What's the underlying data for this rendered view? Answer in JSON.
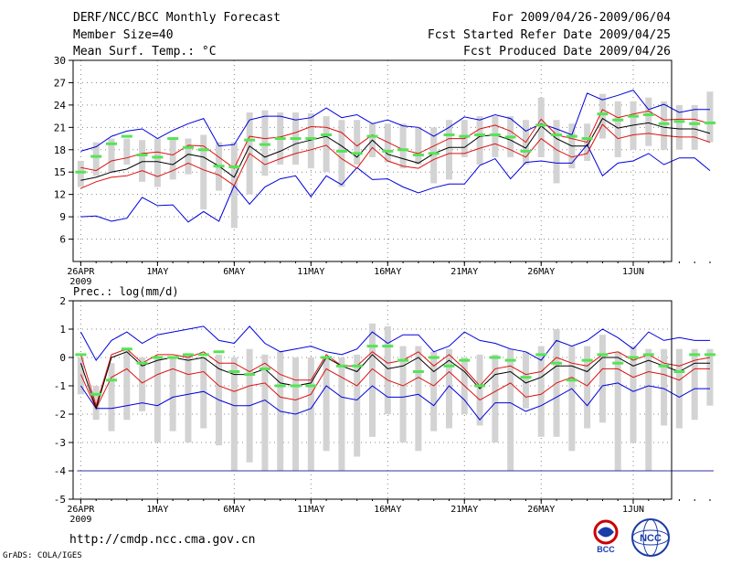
{
  "header": {
    "title_line1": "DERF/NCC/BCC Monthly Forecast",
    "title_line2": "Member Size=40",
    "title_line3": "Mean Surf. Temp.: °C",
    "right_line1": "For 2009/04/26-2009/06/04",
    "right_line2": "Fcst Started Refer Date 2009/04/25",
    "right_line3": "Fcst Produced Date 2009/04/26"
  },
  "footer": {
    "url": "http://cmdp.ncc.cma.gov.cn",
    "credit": "GrADS: COLA/IGES",
    "logo_left_text": "BCC",
    "logo_right_text": "NCC"
  },
  "colors": {
    "box": "#d3d3d3",
    "median": "#55e455",
    "mean": "#000000",
    "inner": "#dd1111",
    "outer": "#0000dd",
    "grid": "#888888"
  },
  "chart_data": [
    {
      "type": "line",
      "title": "Mean Surf. Temp.: °C",
      "ylim": [
        3,
        30
      ],
      "yticks": [
        6,
        9,
        12,
        15,
        18,
        21,
        24,
        27,
        30
      ],
      "xlim": [
        -0.5,
        38.5
      ],
      "xticks": [
        0,
        5,
        10,
        15,
        20,
        25,
        30,
        36
      ],
      "xtick_labels": [
        "26APR",
        "1MAY",
        "6MAY",
        "11MAY",
        "16MAY",
        "21MAY",
        "26MAY",
        "1JUN"
      ],
      "xtick_sublabel": "2009",
      "series": [
        {
          "name": "max",
          "values": [
            17.8,
            18.4,
            19.8,
            20.5,
            20.8,
            19.5,
            20.6,
            21.5,
            22.2,
            18.5,
            18.7,
            22.0,
            22.5,
            22.5,
            22.0,
            22.3,
            23.6,
            22.3,
            22.7,
            21.5,
            22.0,
            21.2,
            21.0,
            19.8,
            21.0,
            22.4,
            22.0,
            22.7,
            22.2,
            20.5,
            21.5,
            20.8,
            20.0,
            25.6,
            24.7,
            25.3,
            26.0,
            23.4,
            24.1,
            23.0,
            23.4,
            23.4
          ]
        },
        {
          "name": "upper",
          "values": [
            15.6,
            15.2,
            16.5,
            16.9,
            17.5,
            17.7,
            17.3,
            18.6,
            18.5,
            17.0,
            15.5,
            19.8,
            19.5,
            19.7,
            20.3,
            21.1,
            21.0,
            20.3,
            18.5,
            20.0,
            19.0,
            18.0,
            17.5,
            18.5,
            19.5,
            19.5,
            20.8,
            21.3,
            20.5,
            19.0,
            22.1,
            20.0,
            19.5,
            19.0,
            23.4,
            22.3,
            22.8,
            23.2,
            22.0,
            22.1,
            22.1,
            21.5
          ]
        },
        {
          "name": "mean",
          "values": [
            13.9,
            14.3,
            15.0,
            15.4,
            16.4,
            16.4,
            16.0,
            17.4,
            17.0,
            15.8,
            14.3,
            18.5,
            17.0,
            17.8,
            18.8,
            19.3,
            19.8,
            18.5,
            17.0,
            19.3,
            17.4,
            16.8,
            16.2,
            17.5,
            18.3,
            18.3,
            19.8,
            20.0,
            19.3,
            18.2,
            21.2,
            19.5,
            18.5,
            18.5,
            22.2,
            20.9,
            21.3,
            21.6,
            21.0,
            20.8,
            20.8,
            20.2
          ]
        },
        {
          "name": "lower",
          "values": [
            12.8,
            13.7,
            14.3,
            14.5,
            15.2,
            14.4,
            15.2,
            16.2,
            15.3,
            14.6,
            13.2,
            17.5,
            16.0,
            16.8,
            17.5,
            18.0,
            18.6,
            16.8,
            15.5,
            18.3,
            16.5,
            15.8,
            15.5,
            16.7,
            17.5,
            17.5,
            18.2,
            18.8,
            18.0,
            17.0,
            19.5,
            18.0,
            17.0,
            17.5,
            21.4,
            19.5,
            20.0,
            20.2,
            19.9,
            19.7,
            19.7,
            19.0
          ]
        },
        {
          "name": "min",
          "values": [
            9.0,
            9.1,
            8.4,
            8.8,
            11.6,
            10.5,
            10.6,
            8.3,
            9.7,
            8.4,
            13.2,
            10.7,
            13.0,
            14.1,
            14.5,
            11.7,
            14.5,
            13.3,
            15.6,
            14.0,
            14.1,
            13.0,
            12.2,
            12.9,
            13.4,
            13.4,
            15.9,
            16.8,
            14.1,
            16.3,
            16.5,
            16.2,
            16.2,
            18.7,
            14.5,
            16.2,
            16.5,
            17.5,
            16.0,
            16.9,
            16.9,
            15.2
          ]
        },
        {
          "name": "median",
          "values": [
            15.0,
            17.1,
            18.8,
            19.8,
            17.3,
            17.0,
            19.5,
            18.3,
            18.0,
            15.8,
            15.7,
            19.3,
            18.7,
            19.5,
            19.5,
            19.5,
            20.0,
            17.8,
            17.5,
            19.8,
            17.8,
            18.0,
            17.3,
            17.5,
            20.0,
            19.8,
            20.0,
            20.0,
            19.7,
            17.8,
            21.3,
            20.0,
            19.8,
            19.5,
            22.8,
            22.0,
            22.5,
            22.7,
            21.5,
            21.8,
            21.5,
            21.6
          ]
        },
        {
          "name": "box_top",
          "values": [
            16.5,
            19.0,
            19.5,
            19.5,
            19.3,
            19.5,
            19.5,
            19.5,
            20.0,
            19.0,
            19.0,
            23.0,
            23.3,
            23.0,
            23.0,
            22.9,
            22.5,
            22.0,
            22.0,
            21.5,
            21.5,
            21.5,
            21.0,
            21.0,
            22.0,
            22.0,
            22.5,
            22.5,
            22.5,
            22.0,
            25.0,
            22.0,
            21.5,
            21.5,
            25.5,
            24.5,
            24.5,
            25.0,
            24.5,
            24.0,
            24.0,
            25.8
          ]
        },
        {
          "name": "box_bottom",
          "values": [
            13.0,
            14.5,
            15.0,
            16.0,
            13.7,
            13.0,
            14.0,
            14.7,
            10.0,
            12.5,
            7.5,
            12.0,
            14.5,
            16.0,
            16.0,
            15.5,
            15.0,
            13.0,
            16.0,
            17.0,
            16.3,
            15.5,
            16.0,
            13.5,
            14.0,
            17.0,
            16.0,
            17.0,
            17.0,
            16.0,
            17.0,
            13.5,
            15.5,
            16.5,
            19.5,
            17.0,
            18.0,
            18.5,
            18.0,
            18.0,
            18.0,
            19.0
          ]
        }
      ]
    },
    {
      "type": "line",
      "title": "Prec.: log(mm/d)",
      "ylim": [
        -5,
        2
      ],
      "yticks": [
        -5,
        -4,
        -3,
        -2,
        -1,
        0,
        1,
        2
      ],
      "xlim": [
        -0.5,
        38.5
      ],
      "xticks": [
        0,
        5,
        10,
        15,
        20,
        25,
        30,
        36
      ],
      "xtick_labels": [
        "26APR",
        "1MAY",
        "6MAY",
        "11MAY",
        "16MAY",
        "21MAY",
        "26MAY",
        "1JUN"
      ],
      "xtick_sublabel": "2009",
      "floor": -4,
      "series": [
        {
          "name": "max",
          "values": [
            0.9,
            -0.1,
            0.6,
            0.9,
            0.5,
            0.8,
            0.9,
            1.0,
            1.1,
            0.6,
            0.5,
            1.1,
            0.5,
            0.2,
            0.3,
            0.4,
            0.2,
            0.1,
            0.3,
            0.9,
            0.5,
            0.8,
            0.8,
            0.2,
            0.4,
            0.9,
            0.6,
            0.5,
            0.3,
            0.2,
            -0.1,
            0.6,
            0.4,
            0.6,
            1.0,
            0.7,
            0.3,
            0.9,
            0.6,
            0.7,
            0.6,
            0.6
          ]
        },
        {
          "name": "upper",
          "values": [
            0.1,
            -1.7,
            0.1,
            0.3,
            -0.2,
            0.1,
            0.1,
            0.0,
            0.2,
            -0.2,
            -0.2,
            -0.5,
            -0.2,
            -0.6,
            -0.8,
            -0.8,
            0.1,
            -0.3,
            -0.3,
            0.2,
            -0.2,
            -0.1,
            0.2,
            -0.3,
            0.1,
            -0.4,
            -1.0,
            -0.4,
            -0.3,
            -0.6,
            -0.5,
            0.0,
            -0.2,
            -0.3,
            0.1,
            0.2,
            -0.1,
            0.1,
            -0.2,
            -0.3,
            -0.1,
            0.0
          ]
        },
        {
          "name": "mean",
          "values": [
            -0.2,
            -1.8,
            0.0,
            0.2,
            -0.3,
            -0.1,
            0.0,
            -0.1,
            0.0,
            -0.4,
            -0.6,
            -0.6,
            -0.4,
            -0.9,
            -1.0,
            -0.9,
            0.0,
            -0.3,
            -0.5,
            0.1,
            -0.4,
            -0.3,
            0.0,
            -0.5,
            -0.1,
            -0.5,
            -1.1,
            -0.6,
            -0.5,
            -0.9,
            -0.7,
            -0.3,
            -0.3,
            -0.5,
            0.0,
            0.0,
            -0.3,
            -0.1,
            -0.3,
            -0.5,
            -0.2,
            -0.2
          ]
        },
        {
          "name": "lower",
          "values": [
            -0.6,
            -1.8,
            -0.7,
            -0.4,
            -0.9,
            -0.6,
            -0.4,
            -0.6,
            -0.5,
            -1.0,
            -1.2,
            -1.0,
            -0.9,
            -1.4,
            -1.5,
            -1.3,
            -0.4,
            -0.7,
            -1.0,
            -0.4,
            -0.8,
            -1.0,
            -0.7,
            -1.0,
            -0.5,
            -1.0,
            -1.5,
            -1.2,
            -0.9,
            -1.4,
            -1.3,
            -0.9,
            -0.7,
            -1.0,
            -0.4,
            -0.4,
            -0.7,
            -0.5,
            -0.6,
            -0.8,
            -0.4,
            -0.4
          ]
        },
        {
          "name": "min",
          "values": [
            -1.0,
            -1.8,
            -1.8,
            -1.7,
            -1.6,
            -1.7,
            -1.4,
            -1.3,
            -1.2,
            -1.5,
            -1.7,
            -1.7,
            -1.5,
            -1.9,
            -2.0,
            -1.8,
            -1.0,
            -1.4,
            -1.5,
            -1.0,
            -1.4,
            -1.4,
            -1.3,
            -1.7,
            -1.0,
            -1.5,
            -2.2,
            -1.6,
            -1.6,
            -1.9,
            -1.7,
            -1.4,
            -1.1,
            -1.7,
            -1.0,
            -0.9,
            -1.2,
            -1.0,
            -1.1,
            -1.4,
            -1.1,
            -1.1
          ]
        },
        {
          "name": "median",
          "values": [
            0.1,
            -1.3,
            -0.8,
            0.3,
            -0.2,
            0.0,
            0.0,
            0.1,
            0.1,
            0.2,
            -0.5,
            -0.6,
            -0.4,
            -1.0,
            -1.0,
            -1.0,
            0.0,
            -0.3,
            -0.3,
            0.4,
            0.4,
            -0.1,
            -0.5,
            0.0,
            -0.3,
            -0.1,
            -1.0,
            0.0,
            -0.1,
            -0.7,
            0.1,
            -0.2,
            -0.8,
            -0.1,
            0.1,
            -0.2,
            0.0,
            0.1,
            -0.3,
            -0.5,
            0.1,
            0.1
          ]
        },
        {
          "name": "box_top",
          "values": [
            0.0,
            -1.0,
            -0.2,
            0.3,
            0.0,
            0.0,
            0.0,
            0.1,
            0.0,
            0.1,
            0.0,
            0.3,
            0.1,
            0.2,
            0.0,
            0.0,
            0.0,
            0.0,
            0.1,
            1.2,
            1.1,
            0.4,
            0.4,
            0.2,
            0.3,
            0.0,
            0.1,
            0.1,
            0.3,
            0.2,
            0.4,
            1.0,
            0.4,
            0.4,
            0.8,
            0.2,
            0.4,
            0.3,
            0.3,
            0.3,
            0.3,
            0.3
          ]
        },
        {
          "name": "box_bottom",
          "values": [
            -1.3,
            -2.2,
            -2.6,
            -2.2,
            -1.9,
            -3.0,
            -2.6,
            -3.0,
            -2.5,
            -3.1,
            -4.0,
            -3.7,
            -4.0,
            -4.0,
            -4.0,
            -4.0,
            -3.3,
            -4.0,
            -3.5,
            -2.8,
            -2.0,
            -3.0,
            -3.3,
            -2.6,
            -2.5,
            -2.0,
            -2.4,
            -3.0,
            -4.0,
            -1.8,
            -2.8,
            -2.8,
            -3.3,
            -2.5,
            -2.3,
            -4.0,
            -3.0,
            -4.0,
            -2.4,
            -2.5,
            -2.2,
            -1.7
          ]
        }
      ]
    }
  ]
}
